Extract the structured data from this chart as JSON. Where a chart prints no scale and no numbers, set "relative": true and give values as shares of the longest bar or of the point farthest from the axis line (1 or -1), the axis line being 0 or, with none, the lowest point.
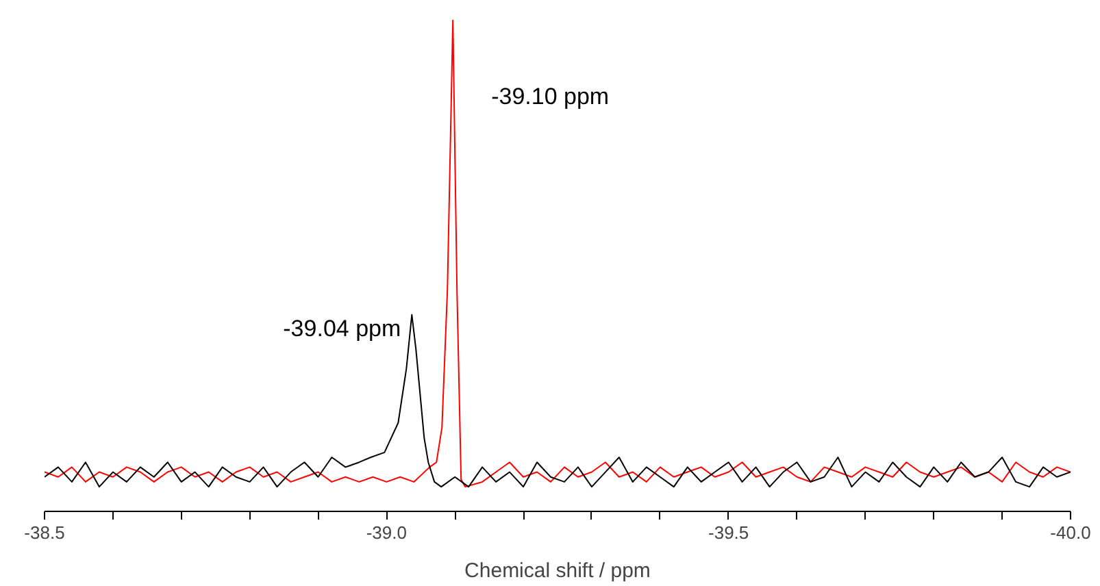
{
  "chart_data": {
    "type": "line",
    "relative": true,
    "xlabel": "Chemical shift / ppm",
    "xlim": [
      -38.5,
      -40.0
    ],
    "xticks": [
      -38.5,
      {
        "value": -38.6,
        "label": null
      },
      {
        "value": -38.7,
        "label": null
      },
      {
        "value": -38.8,
        "label": null
      },
      {
        "value": -38.9,
        "label": null
      },
      {
        "value": -39.0,
        "label": "-39.0"
      },
      {
        "value": -39.1,
        "label": null
      },
      {
        "value": -39.2,
        "label": null
      },
      {
        "value": -39.3,
        "label": null
      },
      {
        "value": -39.4,
        "label": null
      },
      -39.5,
      {
        "value": -39.6,
        "label": null
      },
      {
        "value": -39.7,
        "label": null
      },
      {
        "value": -39.8,
        "label": null
      },
      {
        "value": -39.9,
        "label": null
      },
      {
        "value": -40.0,
        "label": "-40.0"
      }
    ],
    "grid": false,
    "marker": "none",
    "line_style": "solid",
    "series": [
      {
        "color": "#ff0000",
        "x": [
          -38.5,
          -38.52,
          -38.54,
          -38.56,
          -38.58,
          -38.6,
          -38.62,
          -38.64,
          -38.66,
          -38.68,
          -38.7,
          -38.72,
          -38.74,
          -38.76,
          -38.78,
          -38.8,
          -38.82,
          -38.84,
          -38.86,
          -38.88,
          -38.9,
          -38.92,
          -38.94,
          -38.96,
          -38.98,
          -39.0,
          -39.02,
          -39.04,
          -39.063,
          -39.073,
          -39.081,
          -39.089,
          -39.097,
          -39.103,
          -39.109,
          -39.115,
          -39.14,
          -39.16,
          -39.18,
          -39.2,
          -39.22,
          -39.24,
          -39.26,
          -39.28,
          -39.3,
          -39.32,
          -39.34,
          -39.36,
          -39.38,
          -39.4,
          -39.42,
          -39.44,
          -39.46,
          -39.48,
          -39.5,
          -39.52,
          -39.54,
          -39.56,
          -39.58,
          -39.6,
          -39.62,
          -39.64,
          -39.66,
          -39.68,
          -39.7,
          -39.72,
          -39.74,
          -39.76,
          -39.78,
          -39.8,
          -39.82,
          -39.84,
          -39.86,
          -39.88,
          -39.9,
          -39.92,
          -39.94,
          -39.96,
          -39.98,
          -40.0
        ],
        "values": [
          0.08,
          0.07,
          0.09,
          0.06,
          0.08,
          0.07,
          0.09,
          0.08,
          0.06,
          0.08,
          0.09,
          0.07,
          0.08,
          0.06,
          0.08,
          0.09,
          0.07,
          0.08,
          0.06,
          0.07,
          0.08,
          0.06,
          0.07,
          0.06,
          0.07,
          0.06,
          0.07,
          0.06,
          0.09,
          0.1,
          0.17,
          0.45,
          1.0,
          0.45,
          0.065,
          0.05,
          0.06,
          0.08,
          0.1,
          0.07,
          0.08,
          0.06,
          0.09,
          0.07,
          0.08,
          0.1,
          0.07,
          0.08,
          0.06,
          0.09,
          0.07,
          0.08,
          0.09,
          0.07,
          0.08,
          0.1,
          0.07,
          0.08,
          0.09,
          0.07,
          0.06,
          0.09,
          0.08,
          0.07,
          0.09,
          0.08,
          0.07,
          0.1,
          0.08,
          0.07,
          0.08,
          0.09,
          0.07,
          0.08,
          0.06,
          0.1,
          0.08,
          0.07,
          0.09,
          0.08
        ]
      },
      {
        "color": "#000000",
        "x": [
          -38.5,
          -38.52,
          -38.54,
          -38.56,
          -38.58,
          -38.6,
          -38.62,
          -38.64,
          -38.66,
          -38.68,
          -38.7,
          -38.72,
          -38.74,
          -38.76,
          -38.78,
          -38.8,
          -38.82,
          -38.84,
          -38.86,
          -38.88,
          -38.9,
          -38.92,
          -38.94,
          -38.96,
          -38.977,
          -38.997,
          -39.017,
          -39.029,
          -39.037,
          -39.043,
          -39.049,
          -39.055,
          -39.061,
          -39.07,
          -39.08,
          -39.1,
          -39.12,
          -39.14,
          -39.16,
          -39.18,
          -39.2,
          -39.22,
          -39.24,
          -39.26,
          -39.28,
          -39.3,
          -39.32,
          -39.34,
          -39.36,
          -39.38,
          -39.4,
          -39.42,
          -39.44,
          -39.46,
          -39.48,
          -39.5,
          -39.52,
          -39.54,
          -39.56,
          -39.58,
          -39.6,
          -39.62,
          -39.64,
          -39.66,
          -39.68,
          -39.7,
          -39.72,
          -39.74,
          -39.76,
          -39.78,
          -39.8,
          -39.82,
          -39.84,
          -39.86,
          -39.88,
          -39.9,
          -39.92,
          -39.94,
          -39.96,
          -39.98,
          -40.0
        ],
        "values": [
          0.07,
          0.09,
          0.06,
          0.1,
          0.05,
          0.08,
          0.06,
          0.09,
          0.07,
          0.1,
          0.06,
          0.08,
          0.05,
          0.09,
          0.07,
          0.06,
          0.09,
          0.05,
          0.08,
          0.1,
          0.07,
          0.11,
          0.09,
          0.1,
          0.11,
          0.12,
          0.18,
          0.29,
          0.4,
          0.33,
          0.24,
          0.15,
          0.1,
          0.06,
          0.05,
          0.07,
          0.05,
          0.09,
          0.06,
          0.08,
          0.05,
          0.1,
          0.07,
          0.06,
          0.09,
          0.05,
          0.08,
          0.11,
          0.06,
          0.09,
          0.07,
          0.05,
          0.09,
          0.06,
          0.08,
          0.1,
          0.06,
          0.09,
          0.05,
          0.08,
          0.1,
          0.06,
          0.07,
          0.11,
          0.05,
          0.08,
          0.06,
          0.1,
          0.07,
          0.05,
          0.09,
          0.06,
          0.1,
          0.07,
          0.08,
          0.11,
          0.06,
          0.05,
          0.09,
          0.07,
          0.08
        ]
      }
    ],
    "annotations": [
      "-39.04 ppm",
      "-39.10 ppm"
    ]
  }
}
